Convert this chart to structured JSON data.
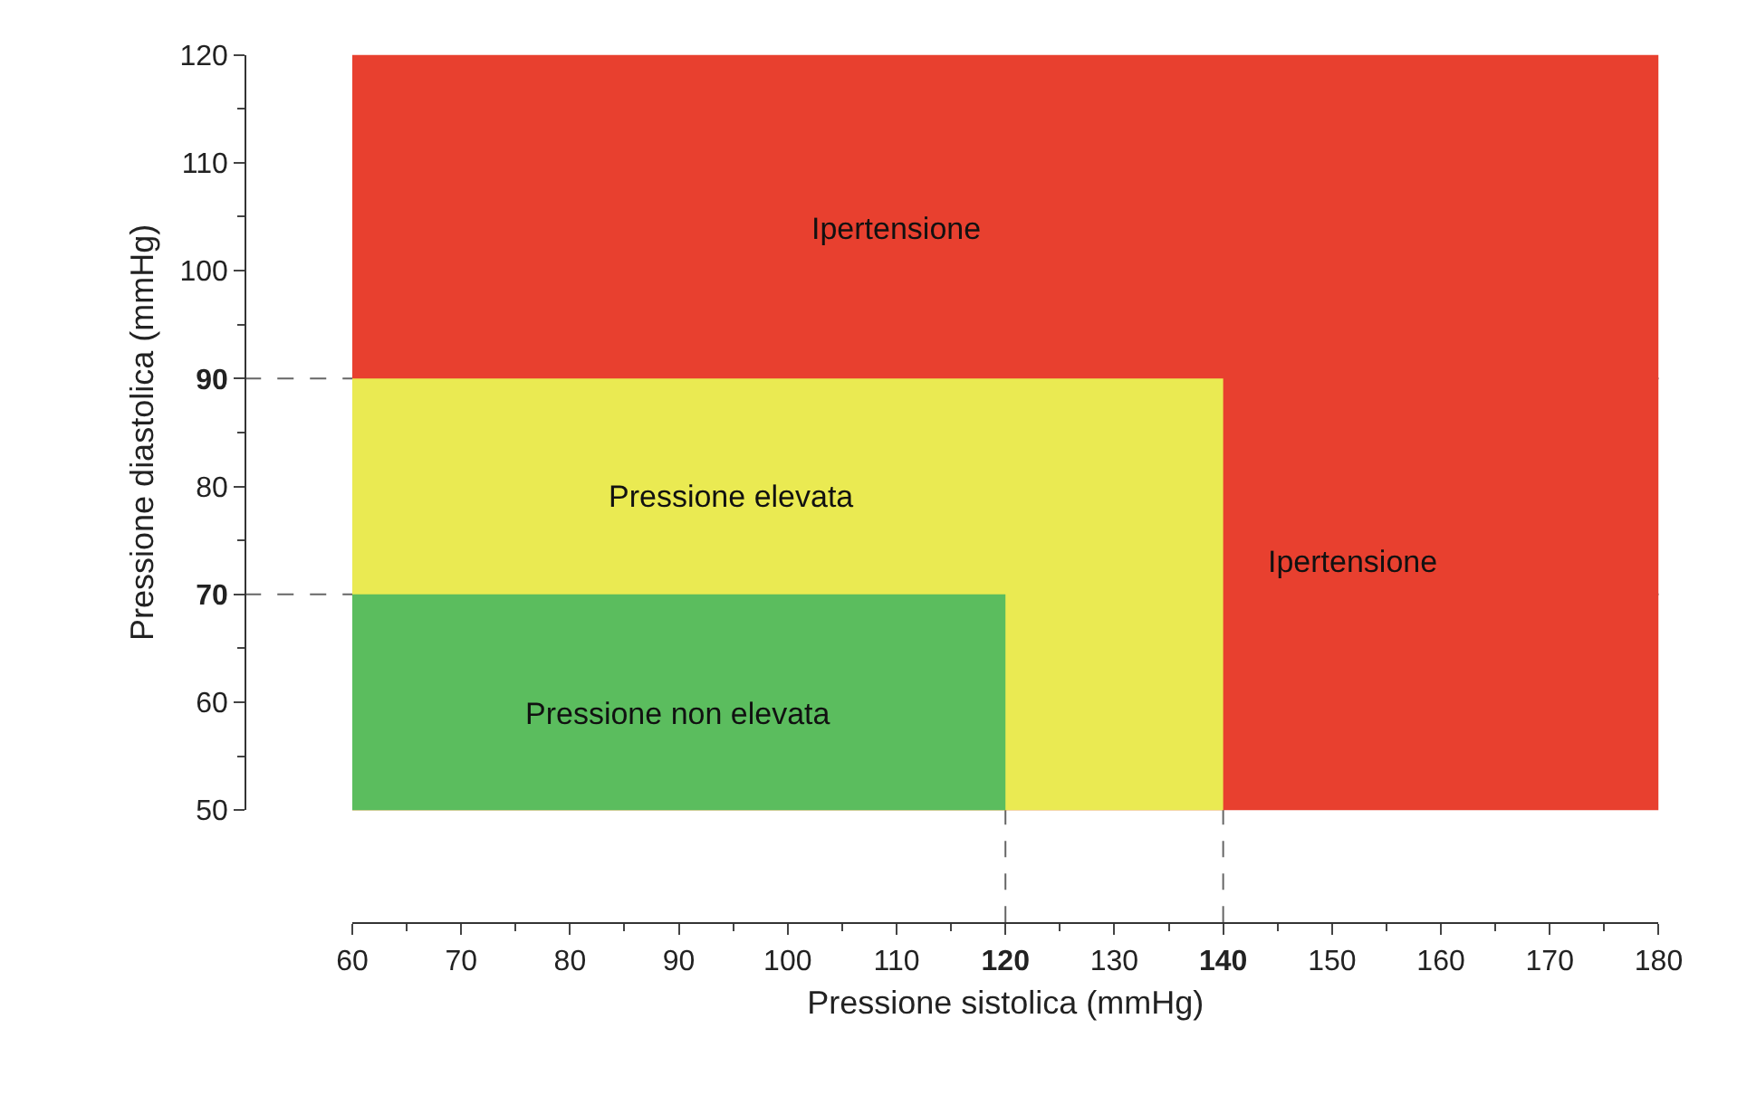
{
  "chart_data": {
    "type": "area",
    "xlabel": "Pressione sistolica (mmHg)",
    "ylabel": "Pressione diastolica (mmHg)",
    "series": [
      {
        "color": "#e8402f",
        "x": [
          60,
          180
        ],
        "values": [
          120,
          120
        ]
      },
      {
        "color": "#eaea52",
        "x": [
          60,
          140
        ],
        "values": [
          90,
          90
        ]
      },
      {
        "color": "#5bbd5e",
        "x": [
          60,
          120
        ],
        "values": [
          70,
          70
        ]
      }
    ],
    "annotations": [
      "Ipertensione",
      "Ipertensione",
      "Pressione elevata",
      "Pressione non elevata"
    ],
    "ref_lines": [
      {
        "axis": "y",
        "value": 90,
        "line_style": "dashed",
        "color": "#666666"
      },
      {
        "axis": "y",
        "value": 70,
        "line_style": "dashed",
        "color": "#666666"
      },
      {
        "axis": "x",
        "value": 120,
        "line_style": "dashed",
        "color": "#666666"
      },
      {
        "axis": "x",
        "value": 140,
        "line_style": "dashed",
        "color": "#666666"
      }
    ],
    "xlim": [
      60,
      180
    ],
    "xticks": [
      60,
      70,
      80,
      90,
      100,
      110,
      120,
      130,
      140,
      150,
      160,
      170,
      180
    ],
    "ylim": [
      50,
      120
    ],
    "yticks": [
      50,
      60,
      70,
      80,
      90,
      100,
      110,
      120
    ],
    "marker": "none"
  }
}
